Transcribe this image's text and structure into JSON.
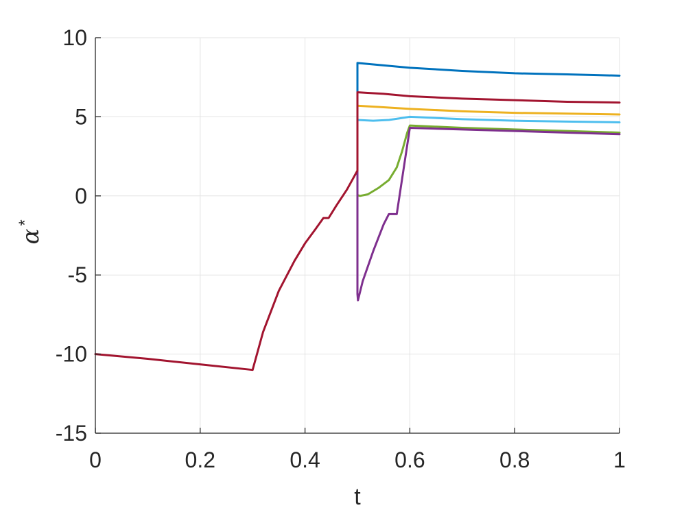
{
  "chart_data": {
    "type": "line",
    "title": "",
    "xlabel": "t",
    "ylabel": "α",
    "ylabel_superscript": "*",
    "xlim": [
      0,
      1
    ],
    "ylim": [
      -15,
      10
    ],
    "xticks": [
      0,
      0.2,
      0.4,
      0.6,
      0.8,
      1
    ],
    "xtick_labels": [
      "0",
      "0.2",
      "0.4",
      "0.6",
      "0.8",
      "1"
    ],
    "yticks": [
      -15,
      -10,
      -5,
      0,
      5,
      10
    ],
    "ytick_labels": [
      "-15",
      "-10",
      "-5",
      "0",
      "5",
      "10"
    ],
    "grid": true,
    "series": [
      {
        "color": "#0072bd",
        "x": [
          0.5,
          0.5,
          0.5,
          0.55,
          0.6,
          0.7,
          0.8,
          0.9,
          1.0
        ],
        "y": [
          1.6,
          6.5,
          8.4,
          8.25,
          8.1,
          7.9,
          7.75,
          7.68,
          7.6
        ]
      },
      {
        "color": "#edb120",
        "x": [
          0.5,
          0.5,
          0.55,
          0.6,
          0.7,
          0.8,
          0.9,
          1.0
        ],
        "y": [
          1.6,
          5.7,
          5.6,
          5.5,
          5.35,
          5.25,
          5.2,
          5.15
        ]
      },
      {
        "color": "#4dbeee",
        "x": [
          0.5,
          0.5,
          0.53,
          0.56,
          0.58,
          0.6,
          0.7,
          0.8,
          0.9,
          1.0
        ],
        "y": [
          1.6,
          4.8,
          4.75,
          4.8,
          4.9,
          5.0,
          4.85,
          4.75,
          4.7,
          4.65
        ]
      },
      {
        "color": "#77ac30",
        "x": [
          0.5,
          0.5,
          0.505,
          0.52,
          0.54,
          0.56,
          0.575,
          0.585,
          0.595,
          0.6,
          0.7,
          0.8,
          0.9,
          1.0
        ],
        "y": [
          1.6,
          0.05,
          0.0,
          0.1,
          0.5,
          1.0,
          1.8,
          2.8,
          4.0,
          4.45,
          4.3,
          4.2,
          4.1,
          4.0
        ]
      },
      {
        "color": "#7e2f8e",
        "x": [
          0.5,
          0.5,
          0.501,
          0.51,
          0.53,
          0.55,
          0.56,
          0.575,
          0.6,
          0.7,
          0.8,
          0.9,
          1.0
        ],
        "y": [
          1.6,
          -6.2,
          -6.6,
          -5.4,
          -3.5,
          -1.8,
          -1.15,
          -1.15,
          4.3,
          4.2,
          4.1,
          4.0,
          3.9
        ]
      },
      {
        "color": "#a2142f",
        "x": [
          0.0,
          0.1,
          0.2,
          0.3,
          0.32,
          0.35,
          0.38,
          0.4,
          0.42,
          0.435,
          0.445,
          0.46,
          0.48,
          0.5,
          0.5,
          0.55,
          0.6,
          0.7,
          0.8,
          0.9,
          1.0
        ],
        "y": [
          -10.0,
          -10.3,
          -10.65,
          -11.0,
          -8.6,
          -6.0,
          -4.1,
          -3.0,
          -2.1,
          -1.4,
          -1.4,
          -0.6,
          0.4,
          1.6,
          6.55,
          6.45,
          6.3,
          6.15,
          6.05,
          5.95,
          5.9
        ]
      }
    ]
  }
}
